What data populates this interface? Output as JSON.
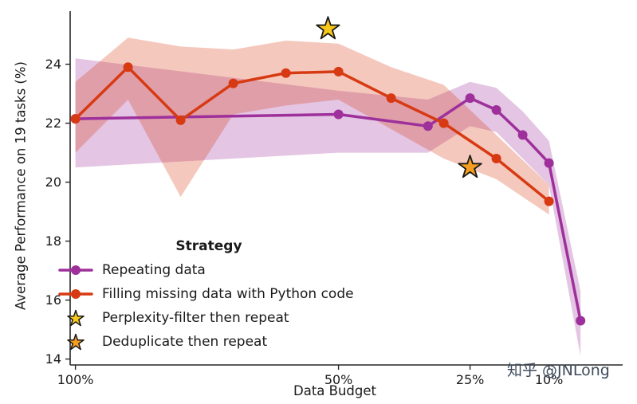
{
  "watermark": "知乎 @JNLong",
  "chart_data": {
    "type": "line",
    "title": "",
    "xlabel": "Data Budget",
    "ylabel": "Average Performance on 19 tasks (%)",
    "x_axis": {
      "scale": "linear-decreasing",
      "range": [
        101,
        -4
      ],
      "ticks": [
        100,
        50,
        25,
        10
      ],
      "tick_labels": [
        "100%",
        "50%",
        "25%",
        "10%"
      ]
    },
    "y_axis": {
      "range": [
        13.8,
        25.8
      ],
      "ticks": [
        14,
        16,
        18,
        20,
        22,
        24
      ],
      "tick_labels": [
        "14",
        "16",
        "18",
        "20",
        "22",
        "24"
      ]
    },
    "legend": {
      "title": "Strategy",
      "position": "lower-left"
    },
    "series": [
      {
        "name": "Repeating data",
        "color": "#9E309B",
        "band_opacity": 0.28,
        "x": [
          100,
          50,
          33,
          25,
          20,
          15,
          10,
          4
        ],
        "y": [
          22.15,
          22.3,
          21.9,
          22.85,
          22.45,
          21.6,
          20.65,
          15.3
        ],
        "band_lower": [
          20.5,
          21.0,
          21.0,
          21.9,
          21.7,
          20.8,
          19.9,
          14.1
        ],
        "band_upper": [
          24.2,
          23.1,
          22.8,
          23.4,
          23.2,
          22.4,
          21.4,
          16.3
        ]
      },
      {
        "name": "Filling missing data with Python code",
        "color": "#D73A12",
        "band_opacity": 0.28,
        "x": [
          100,
          90,
          80,
          70,
          60,
          50,
          40,
          30,
          20,
          10
        ],
        "y": [
          22.15,
          23.9,
          22.1,
          23.35,
          23.7,
          23.75,
          22.85,
          22.0,
          20.8,
          19.35
        ],
        "band_lower": [
          21.0,
          22.8,
          19.5,
          22.3,
          22.6,
          22.8,
          21.8,
          20.8,
          20.1,
          18.9
        ],
        "band_upper": [
          23.4,
          24.9,
          24.6,
          24.5,
          24.8,
          24.7,
          23.9,
          23.3,
          21.6,
          19.9
        ]
      }
    ],
    "points": [
      {
        "name": "Perplexity-filter then repeat",
        "marker": "star",
        "color": "#F9C919",
        "x": 52,
        "y": 25.2
      },
      {
        "name": "Deduplicate then repeat",
        "marker": "star",
        "color": "#F59E1F",
        "x": 25,
        "y": 20.5
      }
    ]
  }
}
